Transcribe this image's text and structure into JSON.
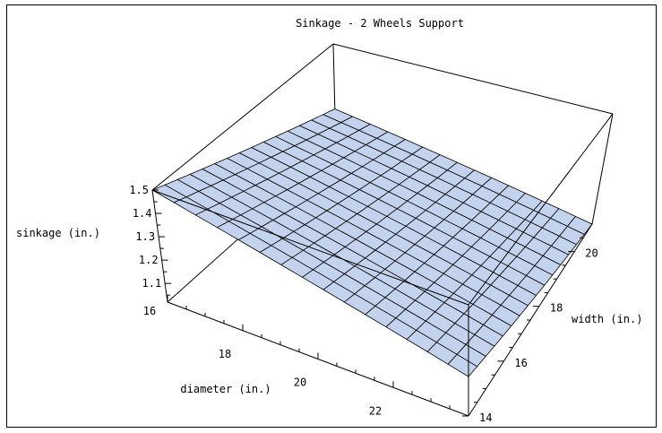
{
  "chart_data": {
    "type": "surface3d",
    "title": "Sinkage - 2 Wheels Support",
    "xlabel": "diameter (in.)",
    "ylabel": "width (in.)",
    "zlabel": "sinkage (in.)",
    "xlim": [
      16,
      24
    ],
    "ylim": [
      14,
      21
    ],
    "zlim": [
      1.02,
      1.5
    ],
    "x_ticks": [
      "18",
      "20",
      "22"
    ],
    "y_ticks": [
      "14",
      "16",
      "18",
      "20"
    ],
    "z_ticks": [
      "1.1",
      "1.2",
      "1.3",
      "1.4",
      "1.5"
    ],
    "corner_labels": {
      "diameter_min": "16"
    },
    "grid_divisions": 15,
    "surface_color": "#c3d3ee",
    "corners": {
      "d16_w14": 1.5,
      "d24_w14": 1.19,
      "d16_w21": 1.21,
      "d24_w21": 1.02
    }
  }
}
